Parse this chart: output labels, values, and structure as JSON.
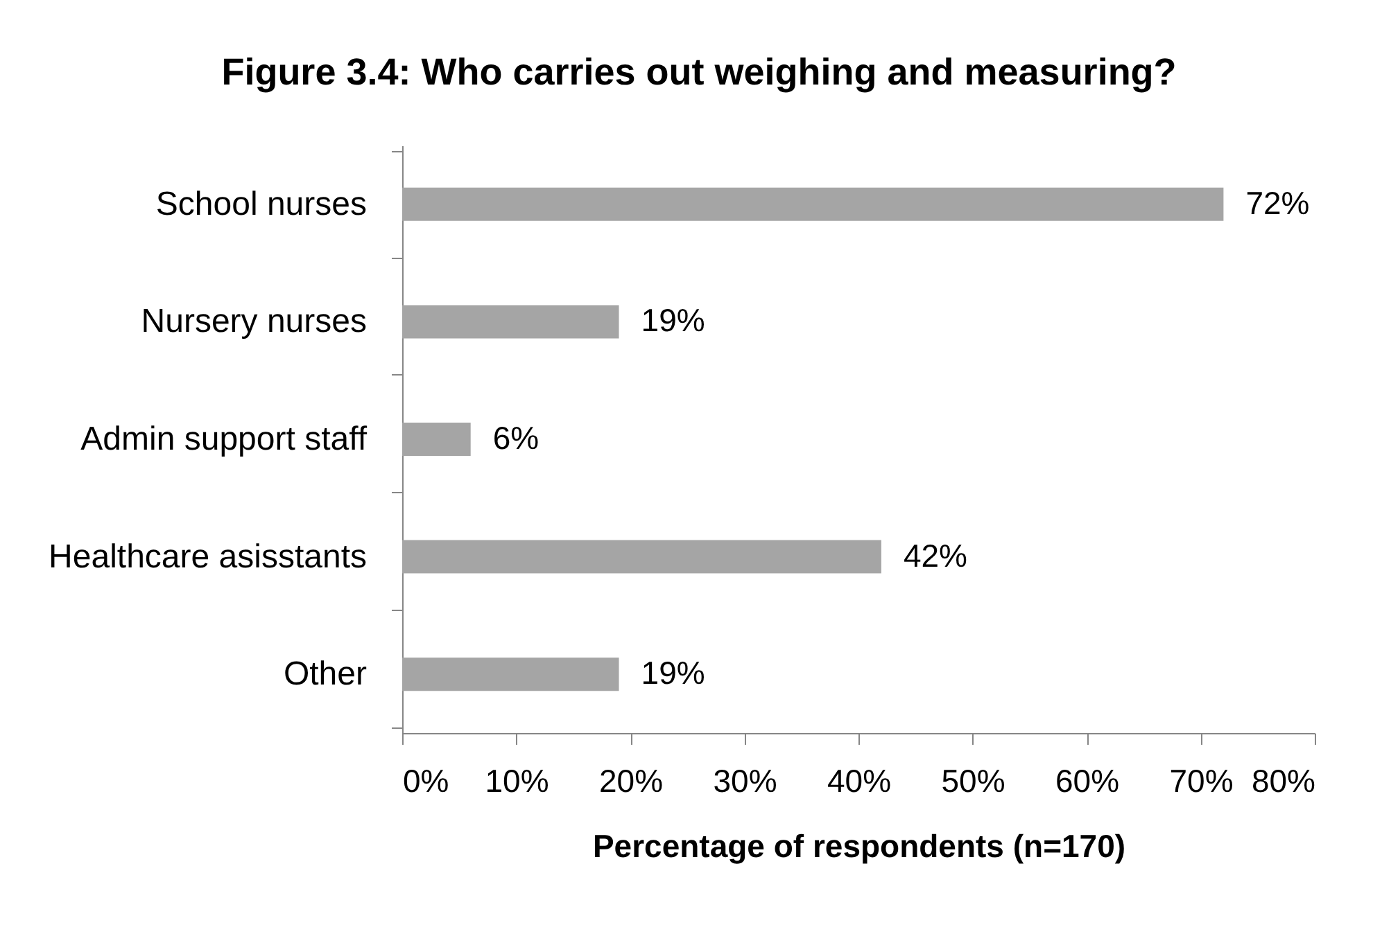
{
  "chart_data": {
    "type": "bar",
    "orientation": "horizontal",
    "title": "Figure 3.4: Who carries out weighing and measuring?",
    "xlabel": "Percentage of respondents (n=170)",
    "categories": [
      "School nurses",
      "Nursery nurses",
      "Admin support staff",
      "Healthcare asisstants",
      "Other"
    ],
    "values": [
      72,
      19,
      6,
      42,
      19
    ],
    "color": "#a5a5a5",
    "value_labels": [
      "72%",
      "19%",
      "6%",
      "42%",
      "19%"
    ],
    "xlim": [
      0,
      80
    ],
    "xticks": [
      {
        "value": 0,
        "label": "0%"
      },
      {
        "value": 10,
        "label": "10%"
      },
      {
        "value": 20,
        "label": "20%"
      },
      {
        "value": 30,
        "label": "30%"
      },
      {
        "value": 40,
        "label": "40%"
      },
      {
        "value": 50,
        "label": "50%"
      },
      {
        "value": 60,
        "label": "60%"
      },
      {
        "value": 70,
        "label": "70%"
      },
      {
        "value": 80,
        "label": "80%"
      }
    ]
  }
}
